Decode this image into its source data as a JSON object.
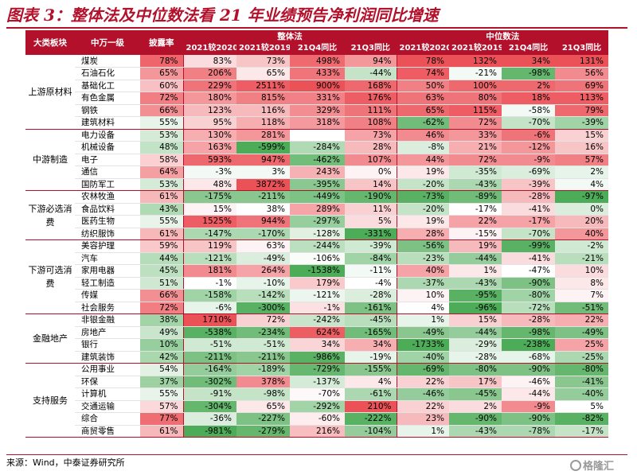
{
  "title": "图表 3：整体法及中位数法看 21 年业绩预告净利润同比增速",
  "source": "来源：Wind，中泰证券研究所",
  "watermark": "格隆汇",
  "colors": {
    "header_bg": "#b3112b",
    "positive": "#e8333a",
    "negative": "#2e9d3a"
  },
  "header": {
    "col_sector": "大类板块",
    "col_industry": "中万一级",
    "col_disclosure": "披露率",
    "group_overall": "整体法",
    "group_median": "中位数法",
    "sub_cols": [
      "2021较2020",
      "2021较2019",
      "21Q4同比",
      "21Q3同比"
    ]
  },
  "chart_data": {
    "type": "heatmap",
    "title": "图表 3：整体法及中位数法看 21 年业绩预告净利润同比增速",
    "units": "%",
    "columns": [
      "披露率",
      "整体法 2021较2020",
      "整体法 2021较2019",
      "整体法 21Q4同比",
      "整体法 21Q3同比",
      "中位数法 2021较2020",
      "中位数法 2021较2019",
      "中位数法 21Q4同比",
      "中位数法 21Q3同比"
    ],
    "groups": [
      {
        "name": "上游原材料",
        "rows": [
          {
            "industry": "煤炭",
            "values": [
              78,
              83,
              73,
              498,
              94,
              78,
              132,
              34,
              131
            ]
          },
          {
            "industry": "石油石化",
            "values": [
              65,
              206,
              65,
              433,
              -44,
              74,
              -21,
              -98,
              56
            ]
          },
          {
            "industry": "基础化工",
            "values": [
              60,
              229,
              2511,
              900,
              168,
              50,
              100,
              2,
              69
            ]
          },
          {
            "industry": "有色金属",
            "values": [
              72,
              180,
              815,
              331,
              176,
              63,
              80,
              18,
              113
            ]
          },
          {
            "industry": "钢铁",
            "values": [
              66,
              123,
              116,
              329,
              111,
              65,
              115,
              -58,
              79
            ]
          },
          {
            "industry": "建筑材料",
            "values": [
              55,
              95,
              118,
              318,
              108,
              -62,
              72,
              -70,
              -39
            ]
          }
        ]
      },
      {
        "name": "中游制造",
        "rows": [
          {
            "industry": "电力设备",
            "values": [
              53,
              130,
              281,
              null,
              73,
              46,
              33,
              -6,
              15
            ]
          },
          {
            "industry": "机械设备",
            "values": [
              48,
              163,
              -599,
              -284,
              28,
              -8,
              21,
              -12,
              16
            ]
          },
          {
            "industry": "电子",
            "values": [
              58,
              593,
              947,
              -462,
              107,
              44,
              72,
              -9,
              57
            ]
          },
          {
            "industry": "通信",
            "values": [
              64,
              -3,
              3,
              243,
              0,
              19,
              -35,
              -69,
              2
            ]
          },
          {
            "industry": "国防军工",
            "values": [
              53,
              48,
              3872,
              -395,
              14,
              -20,
              -43,
              -39,
              4
            ]
          }
        ]
      },
      {
        "name": "下游必选消费",
        "rows": [
          {
            "industry": "农林牧渔",
            "values": [
              61,
              -175,
              -211,
              -449,
              -190,
              -73,
              -89,
              -28,
              -97
            ]
          },
          {
            "industry": "食品饮料",
            "values": [
              43,
              15,
              38,
              289,
              11,
              -20,
              -17,
              -41,
              0
            ]
          },
          {
            "industry": "医药生物",
            "values": [
              55,
              1525,
              944,
              -297,
              5,
              19,
              22,
              -17,
              20
            ]
          },
          {
            "industry": "纺织服饰",
            "values": [
              61,
              -147,
              -170,
              -128,
              -331,
              28,
              -15,
              -70,
              40
            ]
          }
        ]
      },
      {
        "name": "下游可选消费",
        "rows": [
          {
            "industry": "美容护理",
            "values": [
              59,
              119,
              63,
              -244,
              -39,
              -56,
              19,
              -99,
              -2
            ]
          },
          {
            "industry": "汽车",
            "values": [
              44,
              -121,
              -49,
              -106,
              -84,
              -23,
              -44,
              -41,
              -21
            ]
          },
          {
            "industry": "家用电器",
            "values": [
              45,
              181,
              264,
              -1538,
              -11,
              40,
              1,
              -47,
              10
            ]
          },
          {
            "industry": "轻工制造",
            "values": [
              51,
              -1,
              -10,
              179,
              -4,
              -37,
              -43,
              -90,
              8
            ]
          },
          {
            "industry": "传媒",
            "values": [
              66,
              -158,
              -142,
              -121,
              -28,
              10,
              -95,
              -80,
              7
            ]
          },
          {
            "industry": "社会服务",
            "values": [
              72,
              -6,
              -300,
              -1,
              -161,
              4,
              -96,
              -72,
              -51
            ]
          }
        ]
      },
      {
        "name": "金融地产",
        "rows": [
          {
            "industry": "非银金融",
            "values": [
              38,
              1710,
              72,
              -242,
              -45,
              1,
              15,
              -28,
              22
            ]
          },
          {
            "industry": "房地产",
            "values": [
              49,
              -538,
              -234,
              624,
              -165,
              -49,
              -44,
              -98,
              -49
            ]
          },
          {
            "industry": "银行",
            "values": [
              10,
              -51,
              -51,
              34,
              34,
              -1733,
              -29,
              -238,
              25
            ]
          },
          {
            "industry": "建筑装饰",
            "values": [
              42,
              -211,
              -211,
              -986,
              -19,
              -40,
              -28,
              -68,
              -25
            ]
          }
        ]
      },
      {
        "name": "支持服务",
        "rows": [
          {
            "industry": "公用事业",
            "values": [
              54,
              -164,
              -189,
              -729,
              -155,
              -69,
              -80,
              -90,
              -80
            ]
          },
          {
            "industry": "环保",
            "values": [
              37,
              -302,
              378,
              -137,
              4,
              22,
              17,
              -46,
              -41
            ]
          },
          {
            "industry": "计算机",
            "values": [
              55,
              -91,
              -98,
              -70,
              -61,
              -46,
              -45,
              -44,
              -40
            ]
          },
          {
            "industry": "交通运输",
            "values": [
              57,
              -304,
              65,
              -292,
              210,
              22,
              2,
              -9,
              5
            ]
          },
          {
            "industry": "综合",
            "values": [
              77,
              -36,
              -227,
              -60,
              -222,
              23,
              -90,
              -90,
              -82
            ]
          },
          {
            "industry": "商贸零售",
            "values": [
              61,
              -981,
              -279,
              216,
              -104,
              1,
              -43,
              -78,
              -17
            ]
          }
        ]
      }
    ]
  }
}
